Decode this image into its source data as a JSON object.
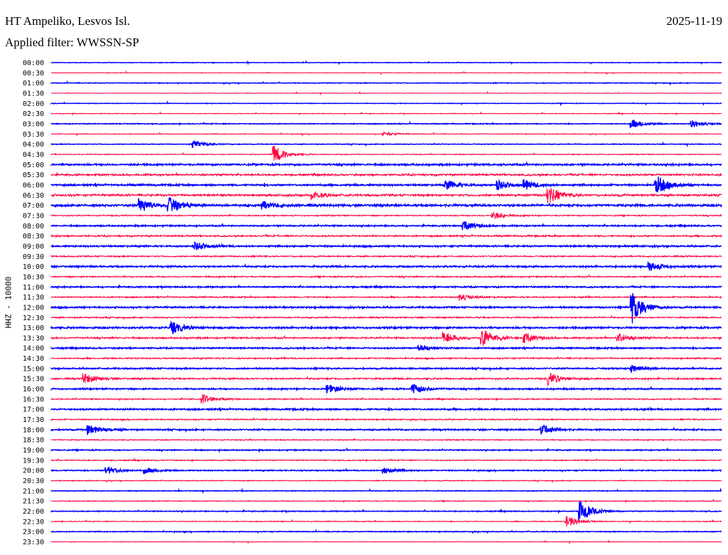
{
  "header": {
    "station": "HT Ampeliko, Lesvos Isl.",
    "filter": "Applied filter: WWSSN-SP",
    "date": "2025-11-19",
    "channel_label": "HHZ - 10000"
  },
  "chart_data": {
    "type": "line",
    "title": "HT Ampeliko, Lesvos Isl.",
    "ylabel": "HHZ - 10000",
    "minutes_per_line": 30,
    "colors": {
      "even": "#0000ff",
      "odd": "#ff0040"
    },
    "row_labels": [
      "00:00",
      "00:30",
      "01:00",
      "01:30",
      "02:00",
      "02:30",
      "03:00",
      "03:30",
      "04:00",
      "04:30",
      "05:00",
      "05:30",
      "06:00",
      "06:30",
      "07:00",
      "07:30",
      "08:00",
      "08:30",
      "09:00",
      "09:30",
      "10:00",
      "10:30",
      "11:00",
      "11:30",
      "12:00",
      "12:30",
      "13:00",
      "13:30",
      "14:00",
      "14:30",
      "15:00",
      "15:30",
      "16:00",
      "16:30",
      "17:00",
      "17:30",
      "18:00",
      "18:30",
      "19:00",
      "19:30",
      "20:00",
      "20:30",
      "21:00",
      "21:30",
      "22:00",
      "22:30",
      "23:00",
      "23:30"
    ],
    "noise_level": [
      0.3,
      0.3,
      0.4,
      0.3,
      0.3,
      0.4,
      0.5,
      0.4,
      0.4,
      0.5,
      1.0,
      1.2,
      1.0,
      1.3,
      1.2,
      0.7,
      0.8,
      1.0,
      0.9,
      0.8,
      0.9,
      0.8,
      0.8,
      0.8,
      0.9,
      0.8,
      1.0,
      1.0,
      0.8,
      0.8,
      0.8,
      1.0,
      0.8,
      0.7,
      0.9,
      0.7,
      0.8,
      0.6,
      0.6,
      0.6,
      0.6,
      0.5,
      0.4,
      0.5,
      0.5,
      0.5,
      0.5,
      0.3
    ],
    "events": [
      {
        "row": "03:00",
        "minute": 26.0,
        "amp": 6
      },
      {
        "row": "03:00",
        "minute": 28.7,
        "amp": 5
      },
      {
        "row": "03:30",
        "minute": 14.9,
        "amp": 3
      },
      {
        "row": "04:00",
        "minute": 6.4,
        "amp": 5
      },
      {
        "row": "04:30",
        "minute": 10.0,
        "amp": 12
      },
      {
        "row": "06:00",
        "minute": 17.7,
        "amp": 6
      },
      {
        "row": "06:00",
        "minute": 20.0,
        "amp": 6
      },
      {
        "row": "06:00",
        "minute": 21.2,
        "amp": 6
      },
      {
        "row": "06:00",
        "minute": 27.1,
        "amp": 13
      },
      {
        "row": "06:30",
        "minute": 11.7,
        "amp": 5
      },
      {
        "row": "06:30",
        "minute": 22.2,
        "amp": 13
      },
      {
        "row": "07:00",
        "minute": 4.0,
        "amp": 9
      },
      {
        "row": "07:00",
        "minute": 5.3,
        "amp": 10
      },
      {
        "row": "07:00",
        "minute": 9.5,
        "amp": 5
      },
      {
        "row": "07:30",
        "minute": 19.8,
        "amp": 5
      },
      {
        "row": "08:00",
        "minute": 18.5,
        "amp": 6
      },
      {
        "row": "09:00",
        "minute": 6.5,
        "amp": 5
      },
      {
        "row": "10:00",
        "minute": 26.8,
        "amp": 6
      },
      {
        "row": "11:30",
        "minute": 18.3,
        "amp": 5
      },
      {
        "row": "12:00",
        "minute": 26.0,
        "amp": 22
      },
      {
        "row": "13:00",
        "minute": 5.4,
        "amp": 8
      },
      {
        "row": "13:30",
        "minute": 17.6,
        "amp": 8
      },
      {
        "row": "13:30",
        "minute": 19.3,
        "amp": 12
      },
      {
        "row": "13:30",
        "minute": 21.2,
        "amp": 7
      },
      {
        "row": "13:30",
        "minute": 25.4,
        "amp": 6
      },
      {
        "row": "14:00",
        "minute": 16.5,
        "amp": 4
      },
      {
        "row": "15:00",
        "minute": 26.0,
        "amp": 5
      },
      {
        "row": "15:30",
        "minute": 1.5,
        "amp": 7
      },
      {
        "row": "15:30",
        "minute": 22.3,
        "amp": 8
      },
      {
        "row": "16:00",
        "minute": 12.4,
        "amp": 6
      },
      {
        "row": "16:00",
        "minute": 16.2,
        "amp": 7
      },
      {
        "row": "16:30",
        "minute": 6.8,
        "amp": 6
      },
      {
        "row": "18:00",
        "minute": 1.7,
        "amp": 7
      },
      {
        "row": "18:00",
        "minute": 22.0,
        "amp": 6
      },
      {
        "row": "20:00",
        "minute": 2.5,
        "amp": 5
      },
      {
        "row": "20:00",
        "minute": 4.2,
        "amp": 4
      },
      {
        "row": "20:00",
        "minute": 14.9,
        "amp": 4
      },
      {
        "row": "22:00",
        "minute": 23.7,
        "amp": 14
      },
      {
        "row": "22:30",
        "minute": 23.1,
        "amp": 9
      }
    ]
  }
}
